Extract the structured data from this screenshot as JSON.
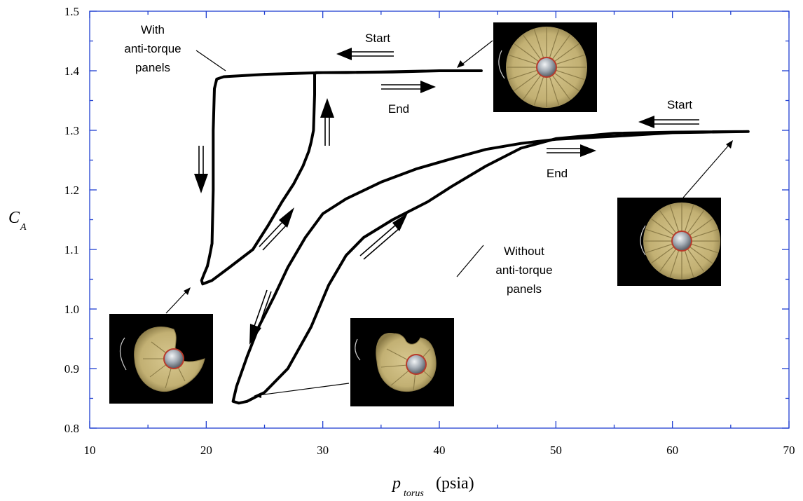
{
  "chart_data": {
    "type": "line",
    "title": "",
    "xlabel": {
      "main": "p",
      "sub": "torus",
      "unit": "(psia)"
    },
    "ylabel": {
      "main": "C",
      "sub": "A"
    },
    "xlim": [
      10,
      70
    ],
    "ylim": [
      0.8,
      1.5
    ],
    "x_ticks": [
      10,
      20,
      30,
      40,
      50,
      60,
      70
    ],
    "y_ticks": [
      "0.8",
      "0.9",
      "1.0",
      "1.1",
      "1.2",
      "1.3",
      "1.4",
      "1.5"
    ],
    "grid": false,
    "series": [
      {
        "name": "With anti-torque panels",
        "x": [
          43.6,
          40,
          35,
          30,
          25,
          21.5,
          20.9,
          20.7,
          20.6,
          20.6,
          20.5,
          20.3,
          20.1,
          19.8,
          19.6,
          19.7,
          20.5,
          22,
          24,
          25.3,
          26.5,
          27.5,
          28.3,
          28.8,
          29.0,
          29.2,
          29.25,
          29.3,
          29.3,
          29.3,
          29.4,
          32,
          36,
          40,
          43.6
        ],
        "y": [
          1.4,
          1.4,
          1.398,
          1.397,
          1.394,
          1.39,
          1.386,
          1.37,
          1.3,
          1.2,
          1.11,
          1.09,
          1.072,
          1.058,
          1.048,
          1.042,
          1.048,
          1.07,
          1.1,
          1.14,
          1.18,
          1.21,
          1.24,
          1.265,
          1.28,
          1.3,
          1.33,
          1.36,
          1.38,
          1.394,
          1.397,
          1.397,
          1.398,
          1.4,
          1.4
        ]
      },
      {
        "name": "Without anti-torque panels",
        "x": [
          66.5,
          60,
          55,
          50,
          47,
          44,
          41,
          38,
          35,
          32,
          30,
          28.5,
          27,
          25.8,
          24.5,
          23.5,
          22.6,
          22.3,
          22.8,
          23.5,
          25,
          27,
          29,
          30.5,
          32,
          33.5,
          36,
          39,
          41,
          44,
          47,
          50,
          55,
          60,
          66.5
        ],
        "y": [
          1.298,
          1.296,
          1.29,
          1.285,
          1.278,
          1.268,
          1.252,
          1.235,
          1.213,
          1.185,
          1.16,
          1.12,
          1.07,
          1.02,
          0.97,
          0.92,
          0.87,
          0.845,
          0.842,
          0.845,
          0.86,
          0.9,
          0.97,
          1.04,
          1.09,
          1.12,
          1.15,
          1.18,
          1.205,
          1.24,
          1.27,
          1.286,
          1.295,
          1.297,
          1.298
        ]
      }
    ],
    "annotations": {
      "with_label": [
        "With",
        "anti-torque",
        "panels"
      ],
      "without_label": [
        "Without",
        "anti-torque",
        "panels"
      ],
      "start_1": "Start",
      "end_1": "End",
      "start_2": "Start",
      "end_2": "End"
    }
  },
  "colors": {
    "axis": "#1f3fd1",
    "curve": "#000000",
    "photo_bg": "#000000",
    "canopy": "#c9b77f",
    "canopy_dark": "#9a8a56",
    "vent_band": "#c0392b",
    "hub": "#9aa3ad"
  },
  "icons": [
    "canopy-photo-full-with-panels",
    "canopy-photo-full-without-panels",
    "canopy-photo-partial-collapse",
    "canopy-photo-collapsed"
  ]
}
